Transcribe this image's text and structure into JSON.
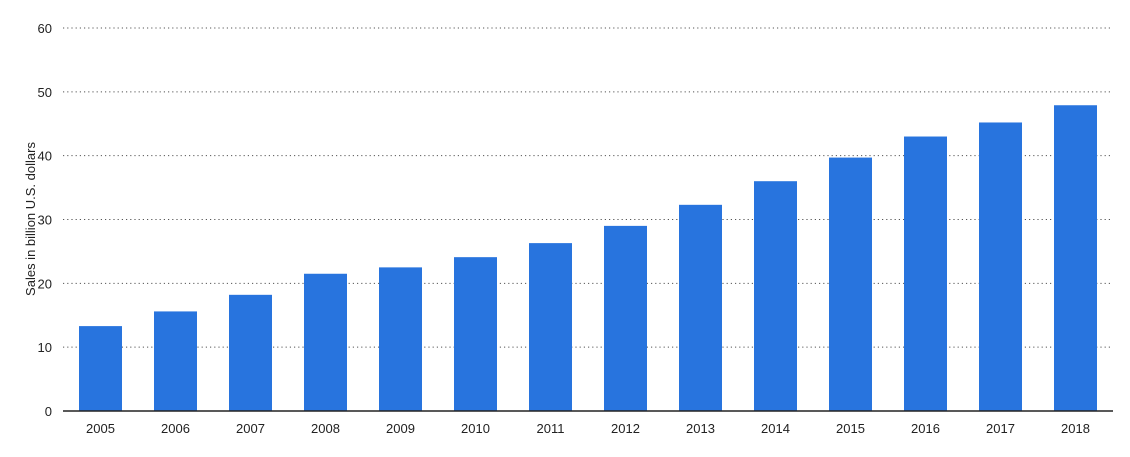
{
  "chart_data": {
    "type": "bar",
    "categories": [
      "2005",
      "2006",
      "2007",
      "2008",
      "2009",
      "2010",
      "2011",
      "2012",
      "2013",
      "2014",
      "2015",
      "2016",
      "2017",
      "2018"
    ],
    "values": [
      13.3,
      15.6,
      18.2,
      21.5,
      22.5,
      24.1,
      26.3,
      29.0,
      32.3,
      36.0,
      39.7,
      43.0,
      45.2,
      47.9
    ],
    "title": "",
    "xlabel": "",
    "ylabel": "Sales in billion U.S. dollars",
    "ylim": [
      0,
      60
    ],
    "yticks": [
      "0",
      "10",
      "20",
      "30",
      "40",
      "50",
      "60"
    ],
    "grid": true,
    "grid_style": "dotted",
    "bar_color": "#2874de",
    "axis_color": "#222222",
    "grid_color": "#555555"
  }
}
